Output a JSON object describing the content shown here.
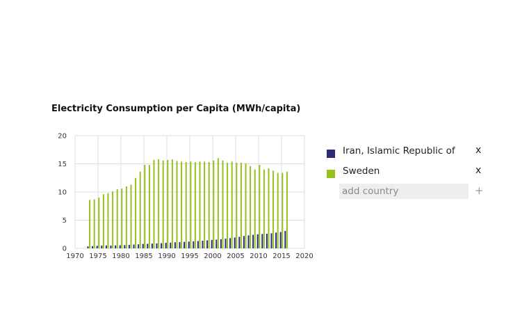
{
  "chart_data": {
    "type": "bar",
    "title": "Electricity Consumption per Capita (MWh/capita)",
    "xlabel": "",
    "ylabel": "",
    "xlim": [
      1970,
      2020
    ],
    "ylim": [
      0,
      20
    ],
    "x_ticks": [
      "1970",
      "1975",
      "1980",
      "1985",
      "1990",
      "1995",
      "2000",
      "2005",
      "2010",
      "2015",
      "2020"
    ],
    "y_ticks": [
      "0",
      "5",
      "10",
      "15",
      "20"
    ],
    "grid": true,
    "legend_position": "right",
    "x": [
      1973,
      1974,
      1975,
      1976,
      1977,
      1978,
      1979,
      1980,
      1981,
      1982,
      1983,
      1984,
      1985,
      1986,
      1987,
      1988,
      1989,
      1990,
      1991,
      1992,
      1993,
      1994,
      1995,
      1996,
      1997,
      1998,
      1999,
      2000,
      2001,
      2002,
      2003,
      2004,
      2005,
      2006,
      2007,
      2008,
      2009,
      2010,
      2011,
      2012,
      2013,
      2014,
      2015,
      2016
    ],
    "series": [
      {
        "name": "Iran, Islamic Republic of",
        "color": "#2e2a7a",
        "values": [
          0.35,
          0.4,
          0.45,
          0.5,
          0.52,
          0.5,
          0.52,
          0.55,
          0.58,
          0.62,
          0.68,
          0.72,
          0.78,
          0.82,
          0.85,
          0.88,
          0.92,
          0.98,
          1.02,
          1.08,
          1.12,
          1.15,
          1.2,
          1.25,
          1.3,
          1.35,
          1.42,
          1.5,
          1.55,
          1.62,
          1.72,
          1.82,
          1.92,
          2.05,
          2.2,
          2.3,
          2.4,
          2.5,
          2.55,
          2.6,
          2.68,
          2.8,
          2.9,
          3.1
        ]
      },
      {
        "name": "Sweden",
        "color": "#95c11f",
        "values": [
          8.6,
          8.7,
          9.0,
          9.6,
          9.8,
          10.1,
          10.5,
          10.6,
          11.0,
          11.3,
          12.5,
          13.6,
          14.8,
          14.8,
          15.7,
          15.8,
          15.6,
          15.7,
          15.8,
          15.5,
          15.4,
          15.3,
          15.4,
          15.3,
          15.4,
          15.4,
          15.3,
          15.6,
          16.0,
          15.6,
          15.2,
          15.4,
          15.2,
          15.2,
          15.1,
          14.6,
          14.0,
          14.8,
          14.0,
          14.2,
          13.8,
          13.4,
          13.4,
          13.6
        ]
      }
    ]
  },
  "legend": {
    "items": [
      {
        "label": "Iran, Islamic Republic of",
        "color": "#2e2a7a",
        "remove": "x"
      },
      {
        "label": "Sweden",
        "color": "#95c11f",
        "remove": "x"
      }
    ],
    "add_placeholder": "add country",
    "add_button": "+"
  }
}
